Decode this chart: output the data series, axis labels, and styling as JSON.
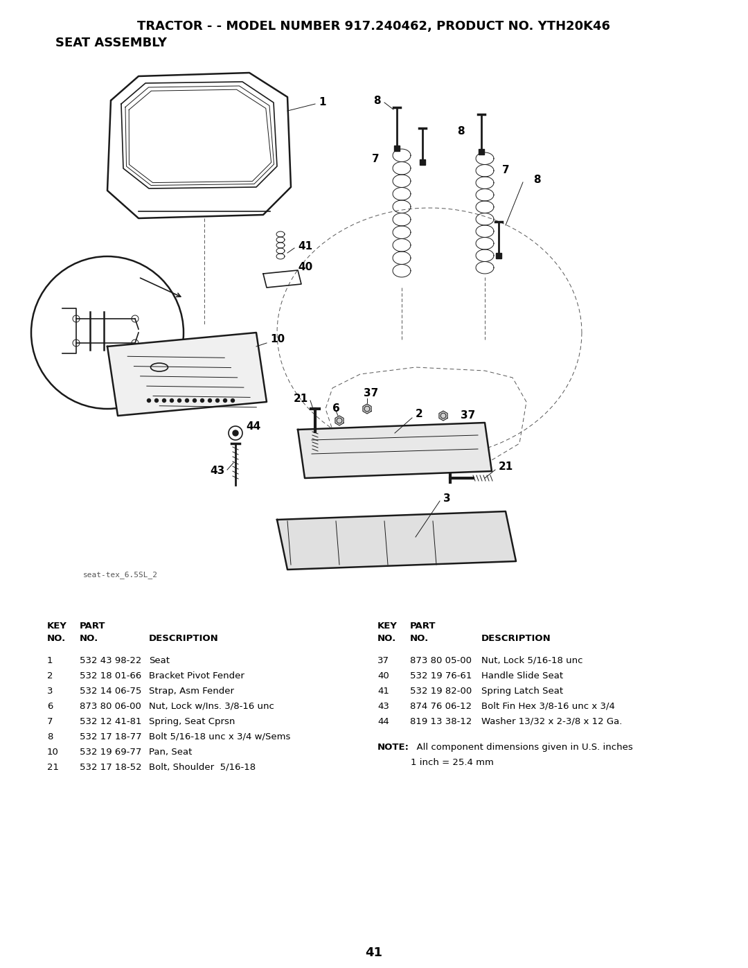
{
  "title_line1": "TRACTOR - - MODEL NUMBER 917.240462, PRODUCT NO. YTH20K46",
  "title_line2": "SEAT ASSEMBLY",
  "image_label": "seat-tex_6.5SL_2",
  "page_number": "41",
  "bg_color": "#ffffff",
  "parts_left": [
    {
      "key": "1",
      "part": "532 43 98-22",
      "desc": "Seat"
    },
    {
      "key": "2",
      "part": "532 18 01-66",
      "desc": "Bracket Pivot Fender"
    },
    {
      "key": "3",
      "part": "532 14 06-75",
      "desc": "Strap, Asm Fender"
    },
    {
      "key": "6",
      "part": "873 80 06-00",
      "desc": "Nut, Lock w/Ins. 3/8-16 unc"
    },
    {
      "key": "7",
      "part": "532 12 41-81",
      "desc": "Spring, Seat Cprsn"
    },
    {
      "key": "8",
      "part": "532 17 18-77",
      "desc": "Bolt 5/16-18 unc x 3/4 w/Sems"
    },
    {
      "key": "10",
      "part": "532 19 69-77",
      "desc": "Pan, Seat"
    },
    {
      "key": "21",
      "part": "532 17 18-52",
      "desc": "Bolt, Shoulder  5/16-18"
    }
  ],
  "parts_right": [
    {
      "key": "37",
      "part": "873 80 05-00",
      "desc": "Nut, Lock 5/16-18 unc"
    },
    {
      "key": "40",
      "part": "532 19 76-61",
      "desc": "Handle Slide Seat"
    },
    {
      "key": "41",
      "part": "532 19 82-00",
      "desc": "Spring Latch Seat"
    },
    {
      "key": "43",
      "part": "874 76 06-12",
      "desc": "Bolt Fin Hex 3/8-16 unc x 3/4"
    },
    {
      "key": "44",
      "part": "819 13 38-12",
      "desc": "Washer 13/32 x 2-3/8 x 12 Ga."
    }
  ],
  "note_bold": "NOTE:",
  "note_rest": "  All component dimensions given in U.S. inches",
  "note_line2": "1 inch = 25.4 mm"
}
